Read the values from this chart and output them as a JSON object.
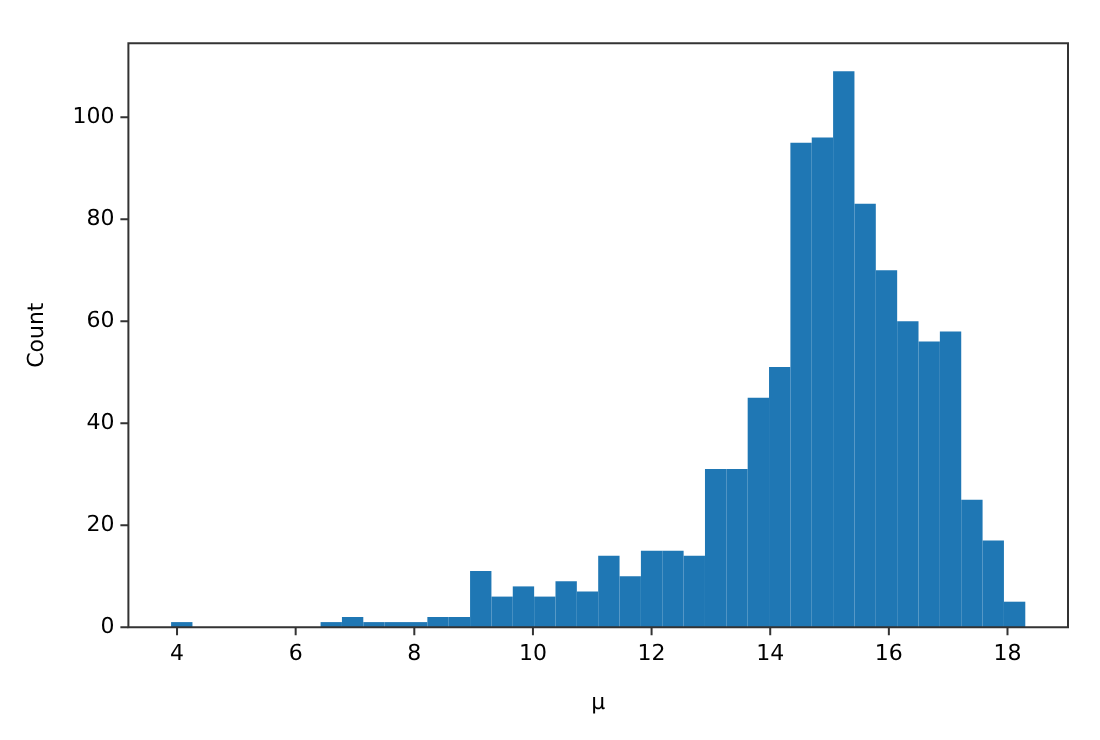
{
  "chart_data": {
    "type": "histogram",
    "xlabel": "μ",
    "ylabel": "Count",
    "color": "#1f77b4",
    "bins": [
      3.9,
      4.26,
      4.62,
      4.98,
      5.34,
      5.7,
      6.06,
      6.42,
      6.78,
      7.14,
      7.5,
      7.86,
      8.22,
      8.58,
      8.94,
      9.3,
      9.66,
      10.02,
      10.38,
      10.74,
      11.1,
      11.46,
      11.82,
      12.18,
      12.54,
      12.9,
      13.26,
      13.62,
      13.98,
      14.34,
      14.7,
      15.06,
      15.42,
      15.78,
      16.14,
      16.5,
      16.86,
      17.22,
      17.58,
      17.94,
      18.3
    ],
    "values": [
      1,
      0,
      0,
      0,
      0,
      0,
      0,
      1,
      2,
      1,
      1,
      1,
      2,
      2,
      11,
      6,
      8,
      6,
      9,
      7,
      14,
      10,
      15,
      15,
      14,
      31,
      31,
      45,
      51,
      95,
      96,
      109,
      83,
      70,
      60,
      56,
      58,
      25,
      17,
      5
    ],
    "xlim": [
      3.18,
      19.02
    ],
    "xticks": [
      4,
      6,
      8,
      10,
      12,
      14,
      16,
      18
    ],
    "ylim": [
      0,
      114.5
    ],
    "yticks": [
      0,
      20,
      40,
      60,
      80,
      100
    ],
    "grid": false,
    "legend": false
  }
}
